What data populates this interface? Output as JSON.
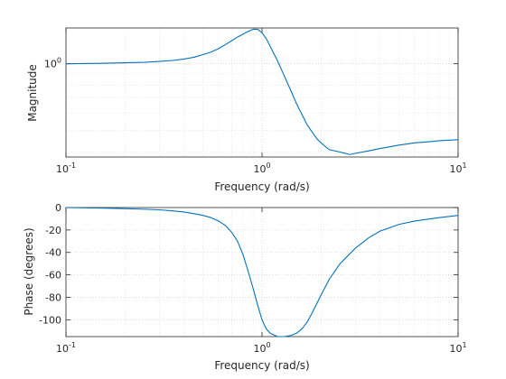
{
  "chart_data": [
    {
      "type": "line",
      "xlabel": "Frequency (rad/s)",
      "ylabel": "Magnitude",
      "xscale": "log",
      "yscale": "log",
      "xlim": [
        0.1,
        10
      ],
      "ylim": [
        0.38,
        1.45
      ],
      "grid": true,
      "x_ticks": [
        {
          "value": 0.1,
          "base": "10",
          "exp": "-1"
        },
        {
          "value": 1,
          "base": "10",
          "exp": "0"
        },
        {
          "value": 10,
          "base": "10",
          "exp": "1"
        }
      ],
      "y_ticks": [
        {
          "value": 1,
          "base": "10",
          "exp": "0"
        }
      ],
      "series": [
        {
          "color": "#0072bd",
          "x": [
            0.1,
            0.15,
            0.2,
            0.25,
            0.3,
            0.35,
            0.4,
            0.45,
            0.5,
            0.55,
            0.6,
            0.65,
            0.7,
            0.75,
            0.8,
            0.85,
            0.9,
            0.95,
            1.0,
            1.05,
            1.1,
            1.2,
            1.3,
            1.4,
            1.5,
            1.7,
            1.9,
            2.0,
            2.2,
            2.5,
            2.8,
            3.0,
            3.5,
            4.0,
            5.0,
            6.0,
            7.0,
            8.0,
            10.0
          ],
          "y": [
            1.0,
            1.005,
            1.01,
            1.015,
            1.025,
            1.035,
            1.05,
            1.07,
            1.1,
            1.13,
            1.17,
            1.22,
            1.27,
            1.32,
            1.36,
            1.4,
            1.43,
            1.43,
            1.38,
            1.3,
            1.2,
            1.03,
            0.88,
            0.76,
            0.66,
            0.53,
            0.46,
            0.44,
            0.41,
            0.4,
            0.39,
            0.395,
            0.405,
            0.415,
            0.43,
            0.44,
            0.445,
            0.45,
            0.455
          ]
        }
      ]
    },
    {
      "type": "line",
      "xlabel": "Frequency (rad/s)",
      "ylabel": "Phase (degrees)",
      "xscale": "log",
      "yscale": "linear",
      "xlim": [
        0.1,
        10
      ],
      "ylim": [
        -115,
        0
      ],
      "grid": true,
      "x_ticks": [
        {
          "value": 0.1,
          "base": "10",
          "exp": "-1"
        },
        {
          "value": 1,
          "base": "10",
          "exp": "0"
        },
        {
          "value": 10,
          "base": "10",
          "exp": "1"
        }
      ],
      "y_ticks": [
        {
          "value": 0,
          "label": "0"
        },
        {
          "value": -20,
          "label": "-20"
        },
        {
          "value": -40,
          "label": "-40"
        },
        {
          "value": -60,
          "label": "-60"
        },
        {
          "value": -80,
          "label": "-80"
        },
        {
          "value": -100,
          "label": "-100"
        }
      ],
      "series": [
        {
          "color": "#0072bd",
          "x": [
            0.1,
            0.15,
            0.2,
            0.25,
            0.3,
            0.35,
            0.4,
            0.45,
            0.5,
            0.55,
            0.6,
            0.65,
            0.7,
            0.75,
            0.8,
            0.85,
            0.9,
            0.95,
            1.0,
            1.05,
            1.1,
            1.2,
            1.3,
            1.4,
            1.5,
            1.6,
            1.7,
            1.8,
            2.0,
            2.2,
            2.5,
            3.0,
            3.5,
            4.0,
            5.0,
            6.0,
            8.0,
            10.0
          ],
          "y": [
            0,
            -0.5,
            -1,
            -1.5,
            -2,
            -3,
            -4,
            -5.5,
            -7,
            -9,
            -12,
            -16,
            -22,
            -30,
            -42,
            -57,
            -72,
            -87,
            -100,
            -108,
            -112,
            -115,
            -115,
            -114,
            -112,
            -108,
            -102,
            -94,
            -78,
            -64,
            -50,
            -36,
            -27,
            -21,
            -15,
            -12,
            -9,
            -7
          ]
        }
      ]
    }
  ]
}
